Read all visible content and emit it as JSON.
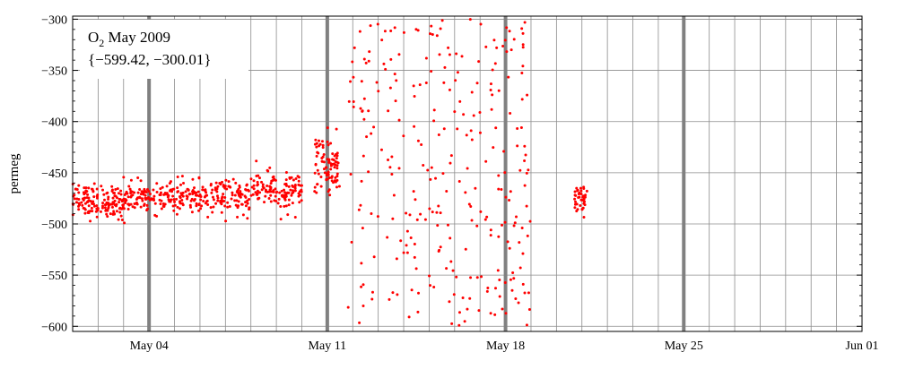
{
  "chart_data": {
    "type": "scatter",
    "title": "",
    "xlabel": "",
    "ylabel": "permeg",
    "legend_box": {
      "title_main": "O",
      "title_sub": "2",
      "title_rest": " May 2009",
      "range_text": "{−599.42, −300.01}"
    },
    "xlim": [
      "2009-05-01",
      "2009-06-01"
    ],
    "ylim": [
      -605,
      -297
    ],
    "x_ticks": [
      {
        "date": "2009-05-04",
        "label": "May 04"
      },
      {
        "date": "2009-05-11",
        "label": "May 11"
      },
      {
        "date": "2009-05-18",
        "label": "May 18"
      },
      {
        "date": "2009-05-25",
        "label": "May 25"
      },
      {
        "date": "2009-06-01",
        "label": "Jun 01"
      }
    ],
    "y_ticks": [
      {
        "value": -300,
        "label": "−300"
      },
      {
        "value": -350,
        "label": "−350"
      },
      {
        "value": -400,
        "label": "−400"
      },
      {
        "value": -450,
        "label": "−450"
      },
      {
        "value": -500,
        "label": "−500"
      },
      {
        "value": -550,
        "label": "−550"
      },
      {
        "value": -600,
        "label": "−600"
      }
    ],
    "grid": true,
    "vertical_grid_dates": [
      "2009-05-02",
      "2009-05-03",
      "2009-05-04",
      "2009-05-05",
      "2009-05-06",
      "2009-05-07",
      "2009-05-08",
      "2009-05-09",
      "2009-05-10",
      "2009-05-11",
      "2009-05-12",
      "2009-05-13",
      "2009-05-14",
      "2009-05-15",
      "2009-05-16",
      "2009-05-17",
      "2009-05-18",
      "2009-05-19",
      "2009-05-20",
      "2009-05-21",
      "2009-05-22",
      "2009-05-23",
      "2009-05-24",
      "2009-05-25",
      "2009-05-26",
      "2009-05-27",
      "2009-05-28",
      "2009-05-29",
      "2009-05-30",
      "2009-05-31"
    ],
    "highlight_lines": [
      "2009-05-04",
      "2009-05-11",
      "2009-05-18",
      "2009-05-25"
    ],
    "point_color": "#ff0000",
    "highlight_color": "#808080",
    "grid_color": "#8c8c8c",
    "series": [
      {
        "clusters": [
          {
            "start": "2009-05-01",
            "end": "2009-05-03",
            "center": -478,
            "spread": 10,
            "count": 150
          },
          {
            "start": "2009-05-03",
            "end": "2009-05-05.5",
            "center": -474,
            "spread": 9,
            "count": 150
          },
          {
            "start": "2009-05-05.5",
            "end": "2009-05-08",
            "center": -474,
            "spread": 10,
            "count": 150
          },
          {
            "start": "2009-05-08",
            "end": "2009-05-10",
            "center": -468,
            "spread": 12,
            "count": 130
          },
          {
            "start": "2009-05-10.5",
            "end": "2009-05-11.5",
            "center": -442,
            "spread": 18,
            "count": 90
          },
          {
            "start": "2009-05-20.7",
            "end": "2009-05-21.2",
            "center": -476,
            "spread": 9,
            "count": 40
          }
        ],
        "scatter_range": {
          "start": "2009-05-11.8",
          "end": "2009-05-19",
          "ymin": -600,
          "ymax": -300,
          "count": 280
        }
      }
    ]
  }
}
